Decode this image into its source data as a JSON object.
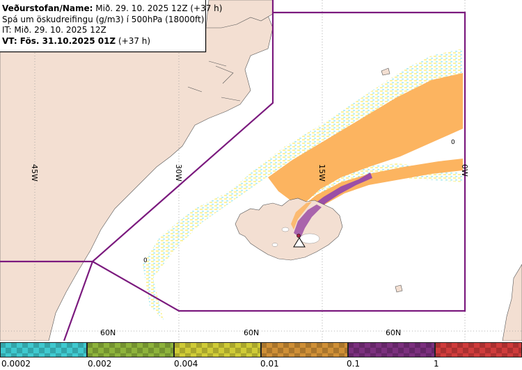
{
  "info": {
    "line1_label": "Veðurstofan/Name:",
    "line1_value": " Mið. 29. 10. 2025 12Z (+37 h)",
    "line2": "Spá um öskudreifingu (g/m3) í 500hPa (18000ft)",
    "line3": "IT: Mið. 29. 10. 2025 12Z",
    "line4_label": "VT:",
    "line4_value": " Fös. 31.10.2025 01Z",
    "line4_suffix": " (+37 h)"
  },
  "map": {
    "lon_labels": [
      "45W",
      "30W",
      "15W",
      "0W"
    ],
    "lat_labels": [
      "60N",
      "60N",
      "60N"
    ],
    "zero_markers": [
      "0",
      "0"
    ],
    "colors": {
      "sea": "#ffffff",
      "land": "#f3dfd2",
      "boundary": "#7b1a7e",
      "grid": "#9a9a9a",
      "ash_light": "#fbf2a0",
      "ash_cyan": "#a8eaf0",
      "ash_orange": "#fcb460",
      "ash_purple": "#9b4fa6"
    }
  },
  "legend": {
    "labels": [
      "0.0002",
      "0.002",
      "0.004",
      "0.01",
      "0.1",
      "1"
    ],
    "colors": [
      "#3fc9cf",
      "#8db33b",
      "#cfcb36",
      "#cf8f36",
      "#7b2f7e",
      "#cf3b3b"
    ]
  }
}
